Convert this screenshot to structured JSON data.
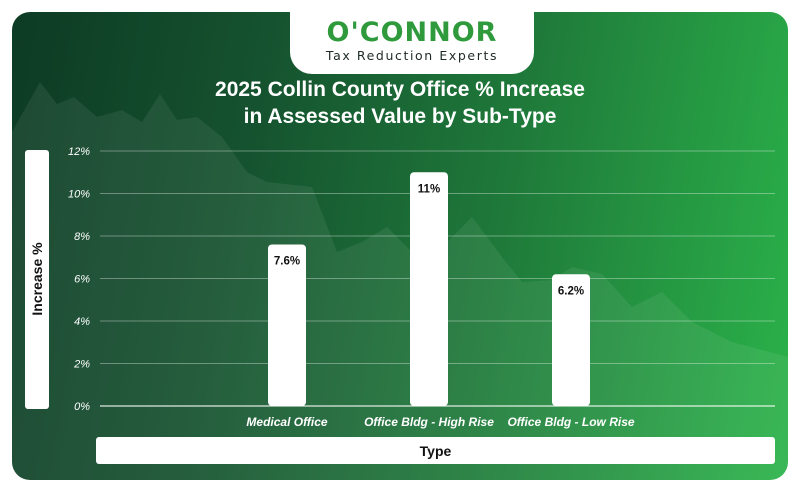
{
  "brand": {
    "name": "O'CONNOR",
    "tagline": "Tax Reduction Experts"
  },
  "colors": {
    "brand_green": "#2e9a3c",
    "background_dark": "#0d3b24",
    "background_light": "#2bb34a",
    "bar": "#ffffff"
  },
  "chart_data": {
    "type": "bar",
    "title": "2025 Collin County Office % Increase in Assessed Value by Sub-Type",
    "title_lines": [
      "2025 Collin County Office % Increase",
      "in Assessed Value by Sub-Type"
    ],
    "xlabel": "Type",
    "ylabel": "Increase %",
    "categories": [
      "Medical Office",
      "Office Bldg - High Rise",
      "Office Bldg - Low Rise"
    ],
    "values": [
      7.6,
      11,
      6.2
    ],
    "data_labels": [
      "7.6%",
      "11%",
      "6.2%"
    ],
    "ylim": [
      0,
      12
    ],
    "yticks": [
      "0%",
      "2%",
      "4%",
      "6%",
      "8%",
      "10%",
      "12%"
    ],
    "grid": true,
    "legend": "none"
  }
}
